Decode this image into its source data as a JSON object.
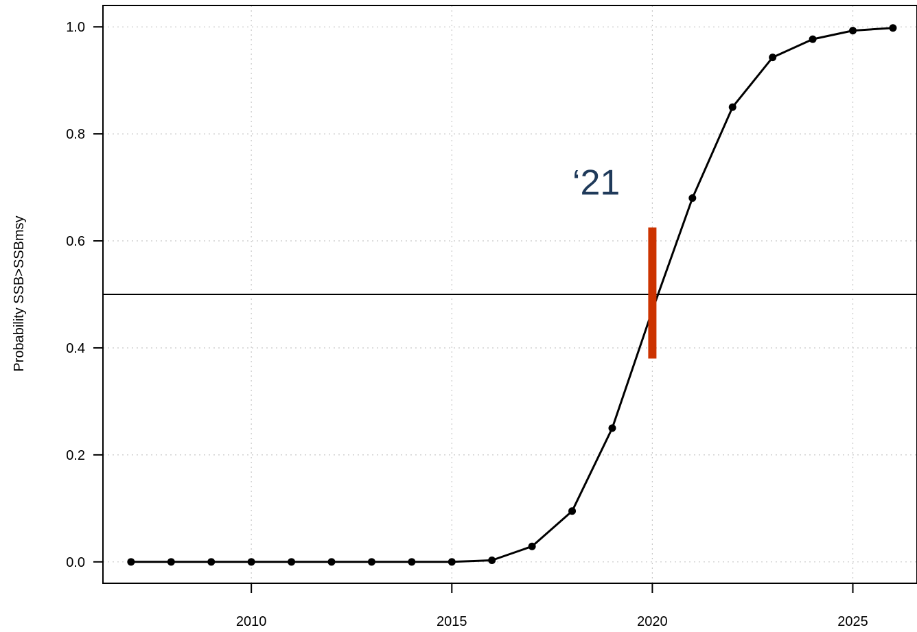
{
  "chart_data": {
    "type": "line",
    "title": "",
    "xlabel": "",
    "ylabel": "Probability SSB>SSBmsy",
    "xlim": [
      2006.3,
      2026.6
    ],
    "ylim": [
      -0.04,
      1.04
    ],
    "x_ticks": [
      2010,
      2015,
      2020,
      2025
    ],
    "y_ticks": [
      0.0,
      0.2,
      0.4,
      0.6,
      0.8,
      1.0
    ],
    "x_tick_labels": [
      "2010",
      "2015",
      "2020",
      "2025"
    ],
    "y_tick_labels": [
      "0.0",
      "0.2",
      "0.4",
      "0.6",
      "0.8",
      "1.0"
    ],
    "grid": true,
    "legend": "none",
    "series": [
      {
        "x": [
          2007,
          2008,
          2009,
          2010,
          2011,
          2012,
          2013,
          2014,
          2015,
          2016,
          2017,
          2018,
          2019,
          2020,
          2021,
          2022,
          2023,
          2024,
          2025,
          2026
        ],
        "y": [
          0.0,
          0.0,
          0.0,
          0.0,
          0.0,
          0.0,
          0.0,
          0.0,
          0.0,
          0.003,
          0.029,
          0.095,
          0.25,
          0.47,
          0.68,
          0.85,
          0.943,
          0.977,
          0.993,
          0.998
        ],
        "color": "#000000",
        "markers": true
      }
    ],
    "reference_line": {
      "y": 0.5,
      "color": "#000000"
    },
    "highlight_marker": {
      "x": 2020,
      "y_range": [
        0.38,
        0.625
      ],
      "color": "#cc3300"
    },
    "annotation": {
      "text": "‘21",
      "x": 2018.6,
      "y": 0.71,
      "color": "#1f3a5a"
    }
  }
}
